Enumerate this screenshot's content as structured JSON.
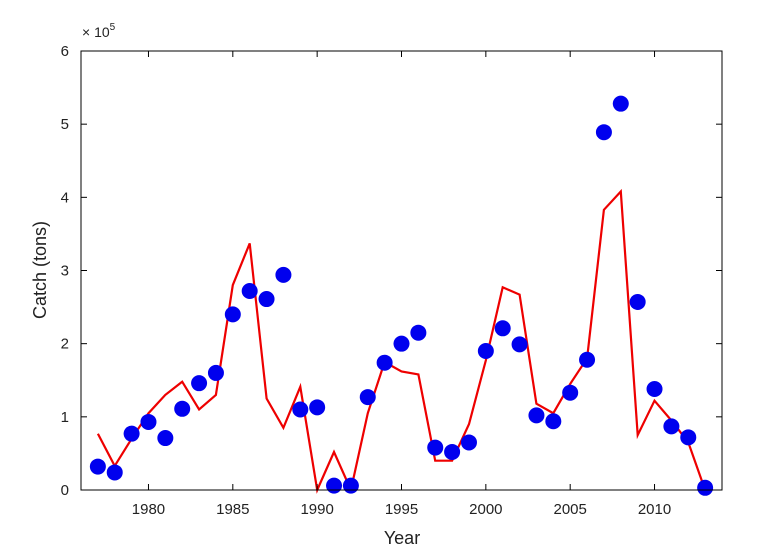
{
  "chart_data": {
    "type": "scatter",
    "title": "",
    "xlabel": "Year",
    "ylabel": "Catch (tons)",
    "y_multiplier": {
      "prefix": "× 10",
      "exponent": "5"
    },
    "xlim": [
      1976,
      2014
    ],
    "ylim": [
      0,
      6
    ],
    "xticks": [
      1980,
      1985,
      1990,
      1995,
      2000,
      2005,
      2010
    ],
    "yticks": [
      0,
      1,
      2,
      3,
      4,
      5,
      6
    ],
    "grid": false,
    "series": [
      {
        "type": "scatter",
        "color": "#0000ee",
        "x": [
          1977,
          1978,
          1979,
          1980,
          1981,
          1982,
          1983,
          1984,
          1985,
          1986,
          1987,
          1988,
          1989,
          1990,
          1991,
          1992,
          1993,
          1994,
          1995,
          1996,
          1997,
          1998,
          1999,
          2000,
          2001,
          2002,
          2003,
          2004,
          2005,
          2006,
          2007,
          2008,
          2009,
          2010,
          2011,
          2012,
          2013
        ],
        "y": [
          0.32,
          0.24,
          0.77,
          0.93,
          0.71,
          1.11,
          1.46,
          1.6,
          2.4,
          2.72,
          2.61,
          2.94,
          1.1,
          1.13,
          0.06,
          0.06,
          1.27,
          1.74,
          2.0,
          2.15,
          0.58,
          0.52,
          0.65,
          1.9,
          2.21,
          1.99,
          1.02,
          0.94,
          1.33,
          1.78,
          4.89,
          5.28,
          2.57,
          1.38,
          0.87,
          0.72,
          0.03
        ]
      },
      {
        "type": "line",
        "color": "#ee0000",
        "x": [
          1977,
          1978,
          1979,
          1980,
          1981,
          1982,
          1983,
          1984,
          1985,
          1986,
          1987,
          1988,
          1989,
          1990,
          1991,
          1992,
          1993,
          1994,
          1995,
          1996,
          1997,
          1998,
          1999,
          2000,
          2001,
          2002,
          2003,
          2004,
          2005,
          2006,
          2007,
          2008,
          2009,
          2010,
          2011,
          2012,
          2013
        ],
        "y": [
          0.77,
          0.33,
          0.7,
          1.05,
          1.3,
          1.48,
          1.1,
          1.3,
          2.8,
          3.37,
          1.25,
          0.85,
          1.41,
          0.0,
          0.52,
          0.0,
          1.05,
          1.75,
          1.62,
          1.58,
          0.4,
          0.4,
          0.9,
          1.77,
          2.77,
          2.67,
          1.18,
          1.05,
          1.45,
          1.8,
          3.83,
          4.08,
          0.75,
          1.22,
          0.95,
          0.65,
          0.0
        ]
      }
    ]
  }
}
